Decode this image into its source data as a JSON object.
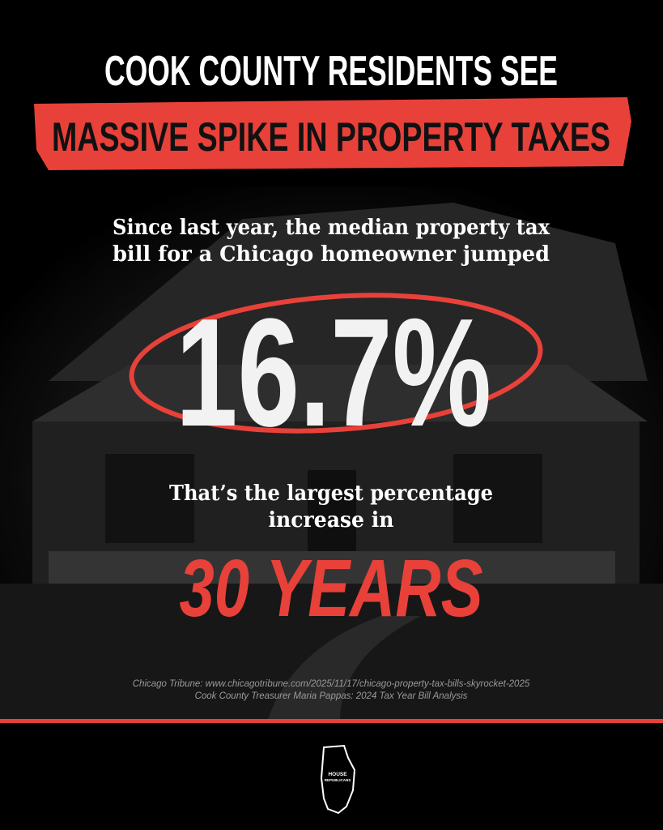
{
  "headline": {
    "line1": "COOK COUNTY RESIDENTS SEE",
    "line2": "MASSIVE SPIKE IN PROPERTY TAXES"
  },
  "intro": {
    "line1": "Since last year, the median property tax",
    "line2": "bill for a Chicago homeowner jumped"
  },
  "stat": "16.7%",
  "followup": {
    "line1": "That’s the largest percentage",
    "line2": "increase in"
  },
  "highlight": "30 YEARS",
  "sources": [
    "Chicago Tribune: www.chicagotribune.com/2025/11/17/chicago-property-tax-bills-skyrocket-2025",
    "Cook County Treasurer Maria Pappas: 2024 Tax Year Bill Analysis"
  ],
  "logo": {
    "line1": "HOUSE",
    "line2": "REPUBLICANS"
  }
}
